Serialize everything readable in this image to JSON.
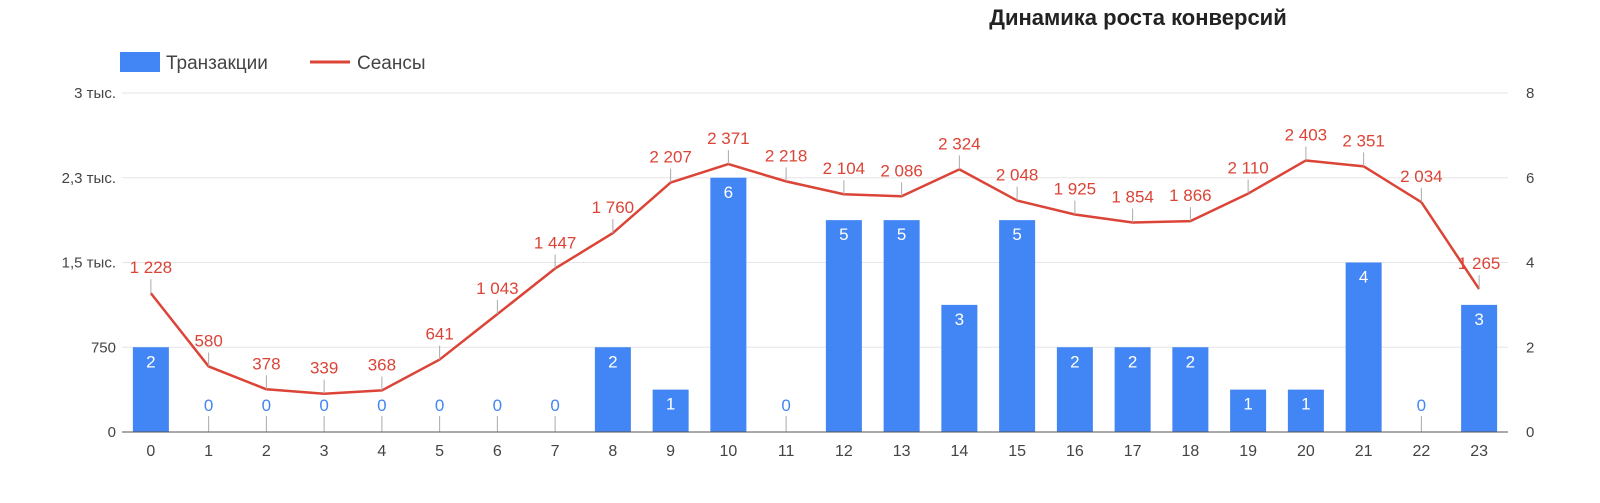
{
  "chart_data": {
    "type": "bar",
    "title": "Динамика роста конверсий",
    "categories": [
      "0",
      "1",
      "2",
      "3",
      "4",
      "5",
      "6",
      "7",
      "8",
      "9",
      "10",
      "11",
      "12",
      "13",
      "14",
      "15",
      "16",
      "17",
      "18",
      "19",
      "20",
      "21",
      "22",
      "23"
    ],
    "series": [
      {
        "name": "Транзакции",
        "type": "bar",
        "axis": "right",
        "color": "#4285F4",
        "values": [
          2,
          0,
          0,
          0,
          0,
          0,
          0,
          0,
          2,
          1,
          6,
          0,
          5,
          5,
          3,
          5,
          2,
          2,
          2,
          1,
          1,
          4,
          0,
          3
        ]
      },
      {
        "name": "Сеансы",
        "type": "line",
        "axis": "left",
        "color": "#DB4437",
        "values": [
          1228,
          580,
          378,
          339,
          368,
          641,
          1043,
          1447,
          1760,
          2207,
          2371,
          2218,
          2104,
          2086,
          2324,
          2048,
          1925,
          1854,
          1866,
          2110,
          2403,
          2351,
          2034,
          1265
        ]
      }
    ],
    "line_labels": [
      "1 228",
      "580",
      "378",
      "339",
      "368",
      "641",
      "1 043",
      "1 447",
      "1 760",
      "2 207",
      "2 371",
      "2 218",
      "2 104",
      "2 086",
      "2 324",
      "2 048",
      "1 925",
      "1 854",
      "1 866",
      "2 110",
      "2 403",
      "2 351",
      "2 034",
      "1 265"
    ],
    "left_axis": {
      "ticks": [
        0,
        750,
        1500,
        2250,
        3000
      ],
      "tick_labels": [
        "0",
        "750",
        "1,5 тыс.",
        "2,3 тыс.",
        "3 тыс."
      ],
      "ylim": [
        0,
        3000
      ]
    },
    "right_axis": {
      "ticks": [
        0,
        2,
        4,
        6,
        8
      ],
      "tick_labels": [
        "0",
        "2",
        "4",
        "6",
        "8"
      ],
      "ylim": [
        0,
        8
      ]
    },
    "legend_position": "top-left",
    "grid": true
  }
}
